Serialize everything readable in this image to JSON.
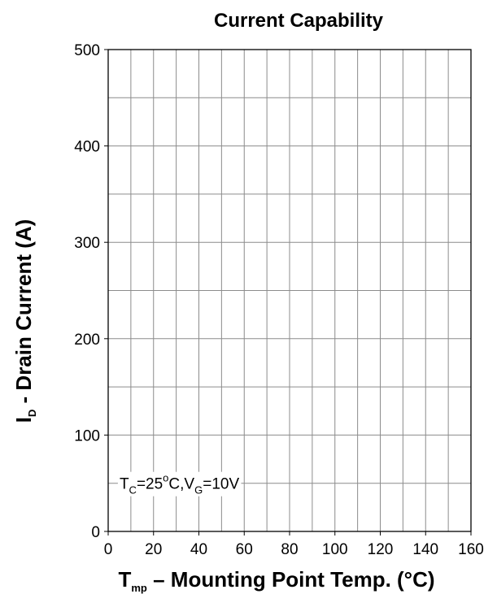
{
  "chart_data": {
    "type": "line",
    "title": "Current Capability",
    "xlabel": {
      "main": "T",
      "sub": "mp",
      "rest": " – Mounting Point Temp.  (°C)"
    },
    "ylabel": {
      "main": "I",
      "sub": "D",
      "rest": " - Drain Current (A)"
    },
    "xlim": [
      0,
      160
    ],
    "ylim": [
      0,
      500
    ],
    "x_ticks": [
      0,
      20,
      40,
      60,
      80,
      100,
      120,
      140,
      160
    ],
    "y_ticks": [
      0,
      100,
      200,
      300,
      400,
      500
    ],
    "x_minor_step": 10,
    "y_minor_step": 50,
    "grid": true,
    "series": [],
    "annotation": {
      "parts": [
        {
          "t": "T",
          "style": "normal"
        },
        {
          "t": "C",
          "style": "sub"
        },
        {
          "t": "=25",
          "style": "normal"
        },
        {
          "t": "o",
          "style": "sup"
        },
        {
          "t": "C,V",
          "style": "normal"
        },
        {
          "t": "G",
          "style": "sub"
        },
        {
          "t": "=10V",
          "style": "normal"
        }
      ],
      "x": 5,
      "y": 50
    }
  }
}
